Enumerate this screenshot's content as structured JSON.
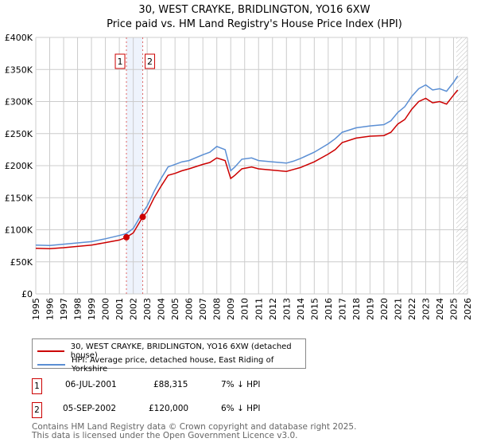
{
  "chart_data": {
    "type": "line",
    "title": "30, WEST CRAYKE, BRIDLINGTON, YO16 6XW",
    "subtitle": "Price paid vs. HM Land Registry's House Price Index (HPI)",
    "xlim": [
      1995,
      2026
    ],
    "ylim": [
      0,
      400000
    ],
    "x_ticks": [
      "1995",
      "1996",
      "1997",
      "1998",
      "1999",
      "2000",
      "2001",
      "2002",
      "2003",
      "2004",
      "2005",
      "2006",
      "2007",
      "2008",
      "2009",
      "2010",
      "2011",
      "2012",
      "2013",
      "2014",
      "2015",
      "2016",
      "2017",
      "2018",
      "2019",
      "2020",
      "2021",
      "2022",
      "2023",
      "2024",
      "2025",
      "2026"
    ],
    "y_ticks": [
      {
        "v": 0,
        "label": "£0"
      },
      {
        "v": 50000,
        "label": "£50K"
      },
      {
        "v": 100000,
        "label": "£100K"
      },
      {
        "v": 150000,
        "label": "£150K"
      },
      {
        "v": 200000,
        "label": "£200K"
      },
      {
        "v": 250000,
        "label": "£250K"
      },
      {
        "v": 300000,
        "label": "£300K"
      },
      {
        "v": 350000,
        "label": "£350K"
      },
      {
        "v": 400000,
        "label": "£400K"
      }
    ],
    "grid": true,
    "forecast_from": 2025.2,
    "series": [
      {
        "name": "30, WEST CRAYKE, BRIDLINGTON, YO16 6XW (detached house)",
        "color": "#cc0000",
        "points": [
          [
            1995,
            71000
          ],
          [
            1996,
            70500
          ],
          [
            1997,
            72000
          ],
          [
            1998,
            74000
          ],
          [
            1999,
            76000
          ],
          [
            2000,
            80000
          ],
          [
            2001,
            84000
          ],
          [
            2001.51,
            88315
          ],
          [
            2002,
            95000
          ],
          [
            2002.68,
            120000
          ],
          [
            2003,
            128000
          ],
          [
            2003.5,
            150000
          ],
          [
            2004,
            168000
          ],
          [
            2004.5,
            185000
          ],
          [
            2005,
            188000
          ],
          [
            2005.5,
            192000
          ],
          [
            2006,
            195000
          ],
          [
            2007,
            202000
          ],
          [
            2007.5,
            205000
          ],
          [
            2008,
            212000
          ],
          [
            2008.6,
            208000
          ],
          [
            2009,
            180000
          ],
          [
            2009.3,
            185000
          ],
          [
            2009.8,
            195000
          ],
          [
            2010.5,
            198000
          ],
          [
            2011,
            195000
          ],
          [
            2012,
            193000
          ],
          [
            2013,
            191000
          ],
          [
            2013.5,
            194000
          ],
          [
            2014,
            197000
          ],
          [
            2015,
            206000
          ],
          [
            2016,
            218000
          ],
          [
            2016.5,
            225000
          ],
          [
            2017,
            236000
          ],
          [
            2018,
            243000
          ],
          [
            2019,
            246000
          ],
          [
            2020,
            247000
          ],
          [
            2020.5,
            252000
          ],
          [
            2021,
            265000
          ],
          [
            2021.5,
            272000
          ],
          [
            2022,
            288000
          ],
          [
            2022.5,
            300000
          ],
          [
            2023,
            305000
          ],
          [
            2023.5,
            298000
          ],
          [
            2024,
            300000
          ],
          [
            2024.5,
            296000
          ],
          [
            2025,
            310000
          ],
          [
            2025.3,
            318000
          ]
        ]
      },
      {
        "name": "HPI: Average price, detached house, East Riding of Yorkshire",
        "color": "#5b8fd4",
        "points": [
          [
            1995,
            76000
          ],
          [
            1996,
            75500
          ],
          [
            1997,
            77500
          ],
          [
            1998,
            79500
          ],
          [
            1999,
            81500
          ],
          [
            2000,
            86000
          ],
          [
            2001,
            91000
          ],
          [
            2001.5,
            94000
          ],
          [
            2002,
            102000
          ],
          [
            2002.68,
            127000
          ],
          [
            2003,
            137000
          ],
          [
            2003.5,
            160000
          ],
          [
            2004,
            180000
          ],
          [
            2004.5,
            198000
          ],
          [
            2005,
            202000
          ],
          [
            2005.5,
            206000
          ],
          [
            2006,
            208000
          ],
          [
            2007,
            217000
          ],
          [
            2007.5,
            221000
          ],
          [
            2008,
            230000
          ],
          [
            2008.6,
            225000
          ],
          [
            2009,
            192000
          ],
          [
            2009.3,
            198000
          ],
          [
            2009.8,
            210000
          ],
          [
            2010.5,
            212000
          ],
          [
            2011,
            208000
          ],
          [
            2012,
            206000
          ],
          [
            2013,
            204000
          ],
          [
            2013.5,
            207000
          ],
          [
            2014,
            211000
          ],
          [
            2015,
            221000
          ],
          [
            2016,
            234000
          ],
          [
            2016.5,
            242000
          ],
          [
            2017,
            252000
          ],
          [
            2018,
            259000
          ],
          [
            2019,
            262000
          ],
          [
            2020,
            264000
          ],
          [
            2020.5,
            270000
          ],
          [
            2021,
            283000
          ],
          [
            2021.5,
            292000
          ],
          [
            2022,
            308000
          ],
          [
            2022.5,
            320000
          ],
          [
            2023,
            326000
          ],
          [
            2023.5,
            318000
          ],
          [
            2024,
            320000
          ],
          [
            2024.5,
            316000
          ],
          [
            2025,
            330000
          ],
          [
            2025.3,
            340000
          ]
        ]
      }
    ],
    "sales": [
      {
        "label": "1",
        "x": 2001.51,
        "y": 88315
      },
      {
        "label": "2",
        "x": 2002.68,
        "y": 120000
      }
    ]
  },
  "legend": {
    "red": "30, WEST CRAYKE, BRIDLINGTON, YO16 6XW (detached house)",
    "blue": "HPI: Average price, detached house, East Riding of Yorkshire"
  },
  "transactions": [
    {
      "num": "1",
      "date": "06-JUL-2001",
      "price": "£88,315",
      "delta": "7% ↓ HPI"
    },
    {
      "num": "2",
      "date": "05-SEP-2002",
      "price": "£120,000",
      "delta": "6% ↓ HPI"
    }
  ],
  "footer": {
    "line1": "Contains HM Land Registry data © Crown copyright and database right 2025.",
    "line2": "This data is licensed under the Open Government Licence v3.0."
  }
}
